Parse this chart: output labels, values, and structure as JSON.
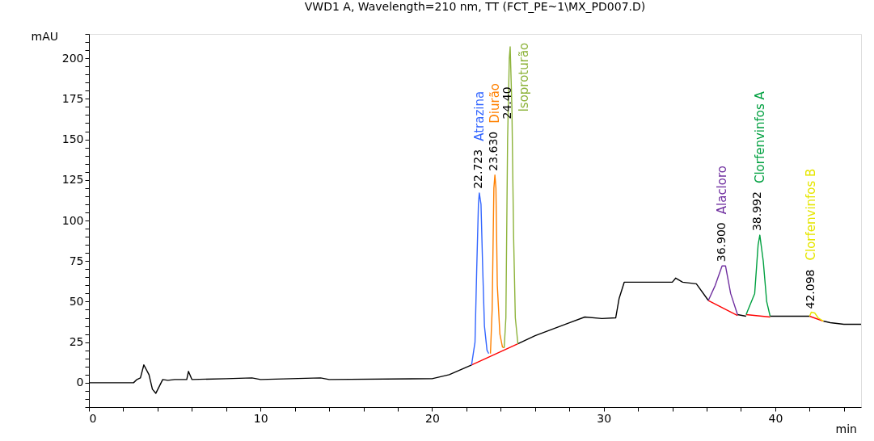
{
  "chart_data": {
    "type": "line",
    "title": "VWD1 A, Wavelength=210 nm, TT (FCT_PE~1\\MX_PD007.D)",
    "xlabel": "min",
    "ylabel": "mAU",
    "xlim": [
      0,
      45
    ],
    "ylim": [
      -15,
      215
    ],
    "xticks": [
      0,
      {
        "value": 2,
        "label": null
      },
      {
        "value": 4,
        "label": null
      },
      {
        "value": 6,
        "label": null
      },
      {
        "value": 8,
        "label": null
      },
      10,
      {
        "value": 12,
        "label": null
      },
      {
        "value": 14,
        "label": null
      },
      {
        "value": 16,
        "label": null
      },
      {
        "value": 18,
        "label": null
      },
      20,
      {
        "value": 22,
        "label": null
      },
      {
        "value": 24,
        "label": null
      },
      {
        "value": 26,
        "label": null
      },
      {
        "value": 28,
        "label": null
      },
      30,
      {
        "value": 32,
        "label": null
      },
      {
        "value": 34,
        "label": null
      },
      {
        "value": 36,
        "label": null
      },
      {
        "value": 38,
        "label": null
      },
      40,
      {
        "value": 42,
        "label": null
      },
      {
        "value": 44,
        "label": null
      }
    ],
    "yticks": [
      {
        "value": -15,
        "label": null
      },
      {
        "value": -10,
        "label": null
      },
      {
        "value": -5,
        "label": null
      },
      0,
      {
        "value": 5,
        "label": null
      },
      {
        "value": 10,
        "label": null
      },
      {
        "value": 15,
        "label": null
      },
      {
        "value": 20,
        "label": null
      },
      25,
      {
        "value": 30,
        "label": null
      },
      {
        "value": 35,
        "label": null
      },
      {
        "value": 40,
        "label": null
      },
      {
        "value": 45,
        "label": null
      },
      50,
      {
        "value": 55,
        "label": null
      },
      {
        "value": 60,
        "label": null
      },
      {
        "value": 65,
        "label": null
      },
      {
        "value": 70,
        "label": null
      },
      75,
      {
        "value": 80,
        "label": null
      },
      {
        "value": 85,
        "label": null
      },
      {
        "value": 90,
        "label": null
      },
      {
        "value": 95,
        "label": null
      },
      100,
      {
        "value": 105,
        "label": null
      },
      {
        "value": 110,
        "label": null
      },
      {
        "value": 115,
        "label": null
      },
      {
        "value": 120,
        "label": null
      },
      125,
      {
        "value": 130,
        "label": null
      },
      {
        "value": 135,
        "label": null
      },
      {
        "value": 140,
        "label": null
      },
      {
        "value": 145,
        "label": null
      },
      150,
      {
        "value": 155,
        "label": null
      },
      {
        "value": 160,
        "label": null
      },
      {
        "value": 165,
        "label": null
      },
      {
        "value": 170,
        "label": null
      },
      175,
      {
        "value": 180,
        "label": null
      },
      {
        "value": 185,
        "label": null
      },
      {
        "value": 190,
        "label": null
      },
      {
        "value": 195,
        "label": null
      },
      200,
      {
        "value": 205,
        "label": null
      },
      {
        "value": 210,
        "label": null
      },
      {
        "value": 215,
        "label": null
      }
    ],
    "grid": false,
    "series": [
      {
        "color": "#000000",
        "x": [
          0,
          2.6,
          2.8,
          3.0,
          3.2,
          3.5,
          3.7,
          3.9,
          4.3,
          4.6,
          5.0,
          5.7,
          5.8,
          6.0,
          8.0,
          9.5,
          10,
          13.5,
          14,
          20,
          21,
          22.3,
          23.5,
          25,
          26,
          27,
          28,
          28.9,
          29.9,
          30.7,
          30.9,
          31.2,
          33.4,
          34.0,
          34.2,
          34.6,
          35.4,
          36.1,
          37.0,
          37.8,
          38.3,
          39.0,
          39.7,
          41.9,
          42.0,
          42.4,
          42.8,
          43.2,
          44,
          45
        ],
        "values": [
          0,
          0,
          2,
          3,
          11,
          5,
          -4,
          -6.5,
          2,
          1.5,
          2,
          2,
          7,
          2,
          2.5,
          3,
          2,
          3,
          2,
          2.5,
          5,
          11,
          null,
          24,
          29,
          33,
          37,
          40.5,
          39.6,
          40,
          52,
          62,
          62,
          62,
          64.5,
          62,
          61,
          50.7,
          null,
          42,
          41,
          null,
          41,
          41,
          41,
          null,
          38,
          37,
          36,
          36
        ]
      },
      {
        "color": "#ff0000",
        "x": [
          22.3,
          25.0,
          30,
          36.1,
          37.8,
          38,
          38.3,
          39.7,
          40,
          42.0,
          42.8
        ],
        "values": [
          11,
          24,
          null,
          50.7,
          41.5,
          null,
          42,
          40.5,
          null,
          41,
          38
        ]
      },
      {
        "name": "Atrazina",
        "color": "#3366ff",
        "x": [
          22.3,
          22.5,
          22.6,
          22.7,
          22.75,
          22.85,
          22.95,
          23.05,
          23.2,
          23.3
        ],
        "values": [
          11,
          25,
          70,
          110,
          117,
          110,
          70,
          35,
          20,
          18
        ]
      },
      {
        "name": "Diurão",
        "color": "#ff8000",
        "x": [
          23.4,
          23.5,
          23.6,
          23.66,
          23.72,
          23.8,
          23.95,
          24.1,
          24.2
        ],
        "values": [
          18,
          45,
          120,
          128,
          120,
          60,
          30,
          22,
          21.5
        ]
      },
      {
        "name": "Isoproturão",
        "color": "#8db33a",
        "x": [
          24.2,
          24.3,
          24.4,
          24.5,
          24.55,
          24.65,
          24.75,
          24.85,
          25.0
        ],
        "values": [
          21.5,
          40,
          150,
          200,
          207,
          170,
          90,
          40,
          24
        ]
      },
      {
        "name": "Alacloro",
        "color": "#7030a0",
        "x": [
          36.1,
          36.5,
          36.9,
          37.1,
          37.4,
          37.8
        ],
        "values": [
          50.7,
          60,
          72,
          72,
          55,
          42
        ]
      },
      {
        "name": "Clorfenvinfos A",
        "color": "#00a040",
        "x": [
          38.3,
          38.8,
          39.0,
          39.1,
          39.3,
          39.5,
          39.7
        ],
        "values": [
          42,
          55,
          85,
          91,
          75,
          50,
          41
        ]
      },
      {
        "name": "Clorfenvinfos B",
        "color": "#e6e600",
        "x": [
          42.0,
          42.1,
          42.3,
          42.5,
          42.8
        ],
        "values": [
          41,
          43.5,
          43,
          40,
          38
        ]
      }
    ],
    "annotations": [
      {
        "text": "22.723",
        "x": 22.723,
        "y": 117
      },
      {
        "text": "23.630",
        "x": 23.63,
        "y": 128
      },
      {
        "text": "24.40",
        "x": 24.4,
        "y": 160
      },
      {
        "text": "36.900",
        "x": 36.9,
        "y": 72
      },
      {
        "text": "38.992",
        "x": 38.992,
        "y": 91
      },
      {
        "text": "42.098",
        "x": 42.098,
        "y": 43
      }
    ]
  }
}
